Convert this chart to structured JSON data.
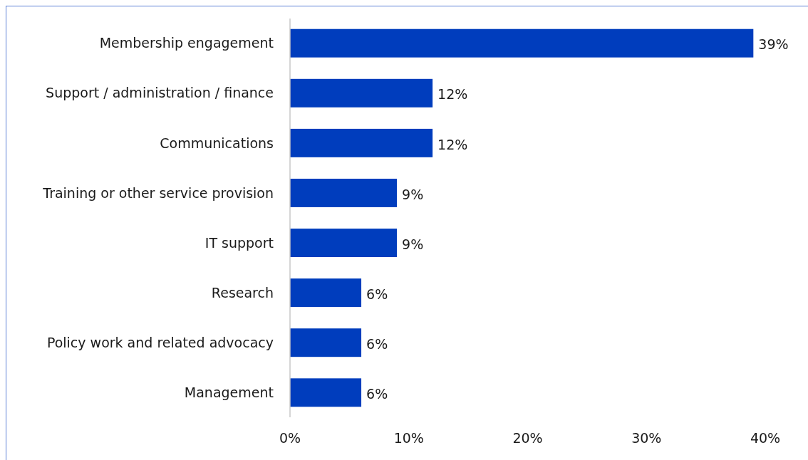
{
  "chart_data": {
    "type": "bar",
    "orientation": "horizontal",
    "categories": [
      "Membership engagement",
      "Support / administration / finance",
      "Communications",
      "Training or other service provision",
      "IT support",
      "Research",
      "Policy work and related advocacy",
      "Management"
    ],
    "values": [
      39,
      12,
      12,
      9,
      9,
      6,
      6,
      6
    ],
    "value_labels": [
      "39%",
      "12%",
      "12%",
      "9%",
      "9%",
      "6%",
      "6%",
      "6%"
    ],
    "color": "#003dbd",
    "xlim": [
      0,
      40
    ],
    "xticks": [
      {
        "value": 0,
        "label": "0%"
      },
      {
        "value": 10,
        "label": "10%"
      },
      {
        "value": 20,
        "label": "20%"
      },
      {
        "value": 30,
        "label": "30%"
      },
      {
        "value": 40,
        "label": "40%"
      }
    ],
    "grid": false
  }
}
